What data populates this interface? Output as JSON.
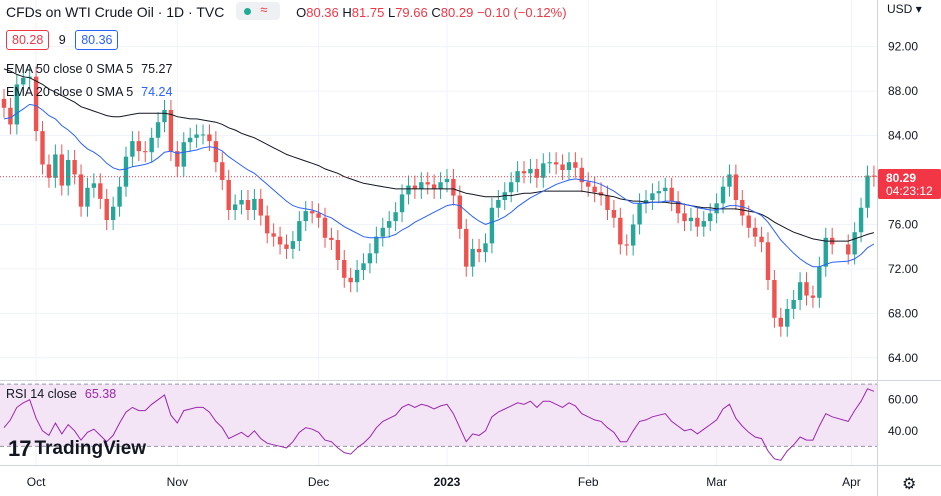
{
  "header": {
    "title": "CFDs on WTI Crude Oil · 1D · TVC",
    "ohlc": [
      {
        "k": "O",
        "v": "80.36"
      },
      {
        "k": "H",
        "v": "81.75"
      },
      {
        "k": "L",
        "v": "79.66"
      },
      {
        "k": "C",
        "v": "80.29"
      },
      {
        "k": "",
        "v": "−0.10 (−0.12%)"
      }
    ]
  },
  "quote": {
    "bid": "80.28",
    "spread": "9",
    "ask": "80.36"
  },
  "indicators": {
    "ema50_label": "EMA 50 close 0 SMA 5",
    "ema50_value": "75.27",
    "ema20_label": "EMA 20 close 0 SMA 5",
    "ema20_value": "74.24",
    "rsi_label": "RSI 14 close",
    "rsi_value": "65.38"
  },
  "currency": "USD",
  "watermark": "TradingView",
  "price_tag": {
    "price": "80.29",
    "countdown": "04:23:12"
  },
  "colors": {
    "up": "#26a69a",
    "down": "#ef5350",
    "ema50": "#131722",
    "ema20": "#2962ff",
    "rsi": "#9c27b0",
    "rsi_band": "#f3e5f5",
    "price_line": "#f23645",
    "tag": "#f23645"
  },
  "chart_data": [
    {
      "type": "candlestick",
      "price_axis_ticks": [
        92,
        88,
        84,
        80,
        76,
        72,
        68,
        64
      ],
      "price_axis_labels": [
        "92.00",
        "88.00",
        "84.00",
        "80.00",
        "76.00",
        "72.00",
        "68.00",
        "64.00"
      ],
      "ylim": [
        62,
        96.2
      ],
      "x_labels": [
        "Oct",
        "Nov",
        "Dec",
        "2023",
        "Feb",
        "Mar",
        "Apr"
      ],
      "label_index": [
        5,
        27,
        49,
        69,
        91,
        111,
        132
      ],
      "n_slots": 135,
      "last_close": 80.29,
      "gap_after_index": 129,
      "closes": [
        86.5,
        85.0,
        88.6,
        89.2,
        89.3,
        84.4,
        81.4,
        80.2,
        82.3,
        79.5,
        81.8,
        80.5,
        77.6,
        79.3,
        79.7,
        78.3,
        76.4,
        77.6,
        79.4,
        82.1,
        83.5,
        82.6,
        82.5,
        83.8,
        85.2,
        86.3,
        82.6,
        81.2,
        83.4,
        83.8,
        84.1,
        84.1,
        83.5,
        81.6,
        80.0,
        77.3,
        77.8,
        78.2,
        77.3,
        78.3,
        76.8,
        75.2,
        74.9,
        74.2,
        73.8,
        74.5,
        76.3,
        77.2,
        77.0,
        76.6,
        74.8,
        74.6,
        72.8,
        71.2,
        70.8,
        71.9,
        72.5,
        73.4,
        74.9,
        75.7,
        76.3,
        77.1,
        78.7,
        79.5,
        79.2,
        79.8,
        79.6,
        79.2,
        79.8,
        80.1,
        78.6,
        75.6,
        72.2,
        73.8,
        73.5,
        74.3,
        77.5,
        78.2,
        78.9,
        79.8,
        80.8,
        80.6,
        81.0,
        80.2,
        81.5,
        81.6,
        81.4,
        80.9,
        81.6,
        81.1,
        79.8,
        79.4,
        78.9,
        78.6,
        77.3,
        76.6,
        74.2,
        74.1,
        76.0,
        77.9,
        78.2,
        78.8,
        79.0,
        79.3,
        78.1,
        77.0,
        76.3,
        76.6,
        75.8,
        76.3,
        77.0,
        77.9,
        79.4,
        80.5,
        78.2,
        76.8,
        75.7,
        74.9,
        74.4,
        71.0,
        67.6,
        66.8,
        68.4,
        69.2,
        70.8,
        69.6,
        69.4,
        72.2,
        74.8,
        74.2,
        73.3,
        75.3,
        77.5,
        80.4,
        80.29
      ],
      "ema50": [
        90.0,
        89.8,
        89.5,
        89.3,
        89.2,
        88.9,
        88.6,
        88.2,
        87.9,
        87.6,
        87.3,
        87.0,
        86.6,
        86.4,
        86.2,
        86.0,
        85.8,
        85.7,
        85.7,
        85.8,
        85.9,
        86.0,
        86.0,
        86.0,
        86.0,
        86.0,
        85.9,
        85.7,
        85.6,
        85.5,
        85.5,
        85.4,
        85.3,
        85.2,
        85.0,
        84.7,
        84.5,
        84.2,
        84.0,
        83.8,
        83.5,
        83.2,
        82.9,
        82.6,
        82.3,
        82.1,
        81.9,
        81.7,
        81.5,
        81.3,
        81.0,
        80.8,
        80.6,
        80.3,
        80.1,
        79.9,
        79.7,
        79.6,
        79.5,
        79.4,
        79.3,
        79.2,
        79.2,
        79.2,
        79.2,
        79.2,
        79.2,
        79.2,
        79.2,
        79.2,
        79.2,
        79.0,
        78.8,
        78.7,
        78.6,
        78.5,
        78.5,
        78.5,
        78.6,
        78.6,
        78.7,
        78.8,
        78.8,
        78.9,
        79.0,
        79.0,
        79.0,
        79.0,
        79.0,
        79.0,
        79.0,
        78.9,
        78.8,
        78.7,
        78.6,
        78.5,
        78.3,
        78.2,
        78.1,
        78.1,
        78.0,
        78.0,
        78.0,
        78.0,
        77.9,
        77.9,
        77.8,
        77.7,
        77.6,
        77.5,
        77.5,
        77.4,
        77.4,
        77.4,
        77.4,
        77.3,
        77.2,
        77.1,
        76.9,
        76.6,
        76.2,
        75.9,
        75.6,
        75.3,
        75.1,
        74.9,
        74.7,
        74.6,
        74.5,
        74.5,
        74.5,
        74.7,
        74.9,
        75.1,
        75.27
      ],
      "ema20": [
        85.5,
        85.6,
        86.0,
        86.4,
        86.8,
        86.7,
        86.3,
        85.8,
        85.5,
        84.9,
        84.5,
        84.0,
        83.3,
        82.8,
        82.5,
        82.1,
        81.5,
        81.1,
        80.9,
        81.0,
        81.2,
        81.3,
        81.4,
        81.6,
        82.0,
        82.5,
        82.6,
        82.4,
        82.5,
        82.6,
        82.7,
        82.9,
        83.0,
        82.9,
        82.6,
        82.1,
        81.7,
        81.3,
        80.9,
        80.6,
        80.1,
        79.6,
        79.1,
        78.6,
        78.1,
        77.7,
        77.5,
        77.4,
        77.3,
        77.1,
        76.8,
        76.6,
        76.2,
        75.8,
        75.5,
        75.2,
        74.9,
        74.8,
        74.8,
        74.8,
        74.9,
        75.1,
        75.5,
        75.8,
        76.2,
        76.5,
        76.8,
        77.1,
        77.4,
        77.7,
        77.8,
        77.7,
        77.2,
        76.7,
        76.3,
        76.0,
        76.2,
        76.4,
        76.7,
        77.1,
        77.6,
        78.0,
        78.4,
        78.7,
        79.0,
        79.3,
        79.6,
        79.8,
        80.0,
        80.1,
        80.0,
        79.9,
        79.8,
        79.6,
        79.3,
        79.0,
        78.6,
        78.2,
        77.9,
        77.9,
        77.9,
        78.0,
        78.0,
        78.1,
        78.1,
        78.0,
        77.8,
        77.7,
        77.5,
        77.4,
        77.3,
        77.3,
        77.5,
        77.7,
        77.7,
        77.6,
        77.4,
        77.1,
        76.8,
        76.2,
        75.4,
        74.6,
        74.0,
        73.4,
        72.9,
        72.5,
        72.2,
        72.2,
        72.4,
        72.6,
        72.7,
        72.9,
        73.3,
        73.9,
        74.24
      ],
      "visible_window": {
        "first_index": 0,
        "last_index": 134
      }
    },
    {
      "type": "line",
      "name": "RSI 14 close",
      "y_axis_labels": [
        "60.00",
        "40.00"
      ],
      "y_ticks": [
        60,
        40
      ],
      "ylim": [
        18,
        72
      ],
      "band": [
        30,
        70
      ],
      "values": [
        42,
        47,
        55,
        58,
        60,
        48,
        40,
        37,
        45,
        38,
        44,
        40,
        34,
        39,
        41,
        37,
        33,
        37,
        45,
        52,
        55,
        53,
        53,
        57,
        60,
        63,
        50,
        45,
        53,
        54,
        55,
        55,
        52,
        46,
        42,
        35,
        37,
        39,
        36,
        40,
        35,
        32,
        31,
        30,
        29,
        33,
        39,
        42,
        41,
        39,
        34,
        33,
        29,
        26,
        25,
        29,
        32,
        36,
        42,
        46,
        48,
        50,
        55,
        57,
        55,
        57,
        56,
        54,
        56,
        57,
        51,
        42,
        33,
        38,
        37,
        40,
        49,
        52,
        54,
        56,
        58,
        57,
        59,
        55,
        59,
        59,
        57,
        55,
        58,
        56,
        51,
        49,
        47,
        46,
        42,
        39,
        33,
        33,
        40,
        46,
        47,
        49,
        50,
        51,
        46,
        43,
        40,
        41,
        38,
        41,
        44,
        47,
        54,
        57,
        48,
        43,
        39,
        36,
        35,
        27,
        22,
        21,
        27,
        31,
        36,
        34,
        34,
        43,
        51,
        49,
        46,
        53,
        59,
        67,
        65.38
      ]
    }
  ]
}
